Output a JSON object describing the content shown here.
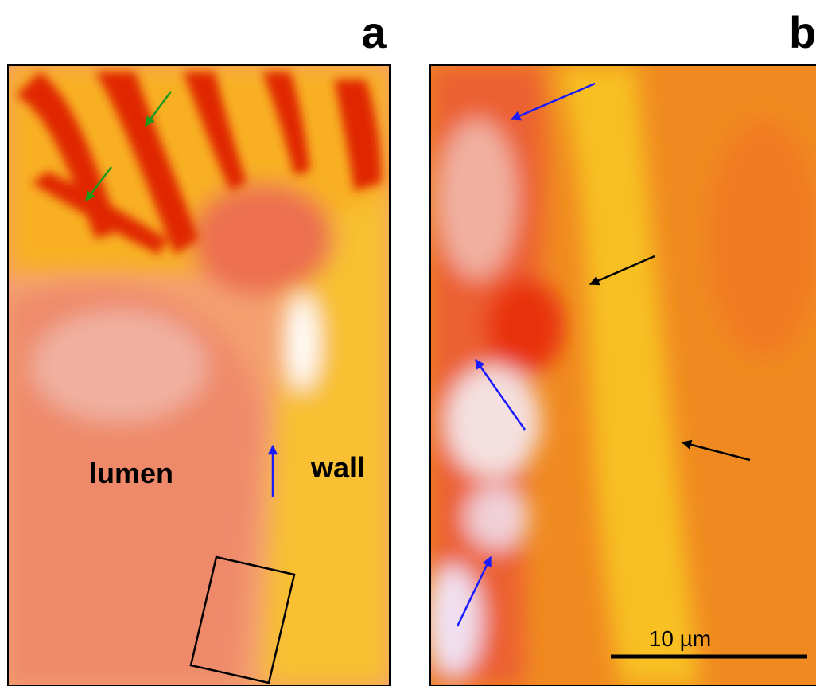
{
  "panels": [
    {
      "label": "a",
      "annotations": [
        "lumen",
        "wall"
      ]
    },
    {
      "label": "b",
      "scale_bar": "10 µm"
    }
  ]
}
